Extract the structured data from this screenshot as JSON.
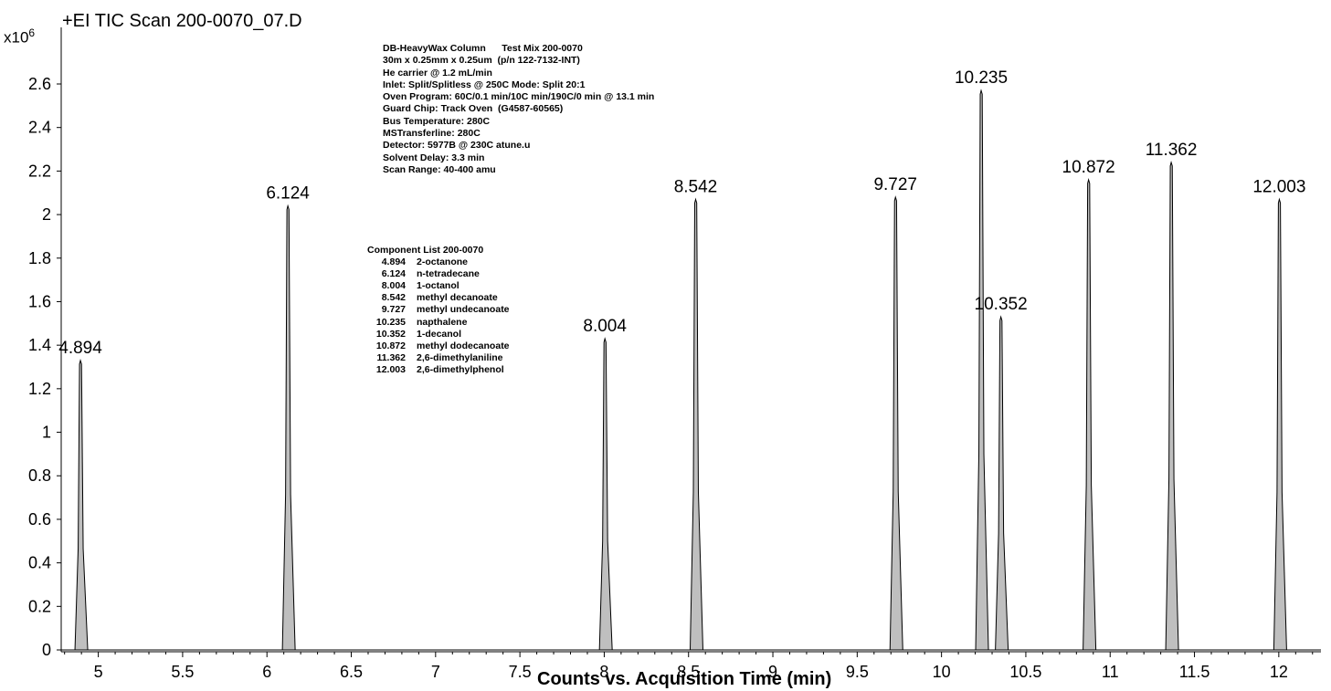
{
  "chart_data": {
    "type": "line",
    "title": "+EI TIC Scan 200-0070_07.D",
    "ylabel_multiplier_base": "x10",
    "ylabel_multiplier_exp": "6",
    "xlabel": "Counts vs. Acquisition Time (min)",
    "xlim": [
      4.78,
      12.25
    ],
    "ylim": [
      0,
      2.75
    ],
    "xticks": [
      5,
      5.5,
      6,
      6.5,
      7,
      7.5,
      8,
      8.5,
      9,
      9.5,
      10,
      10.5,
      11,
      11.5,
      12
    ],
    "xtick_labels": [
      "5",
      "5.5",
      "6",
      "6.5",
      "7",
      "7.5",
      "8",
      "8.5",
      "9",
      "9.5",
      "10",
      "10.5",
      "11",
      "11.5",
      "12"
    ],
    "yticks": [
      0,
      0.2,
      0.4,
      0.6,
      0.8,
      1,
      1.2,
      1.4,
      1.6,
      1.8,
      2,
      2.2,
      2.4,
      2.6
    ],
    "ytick_labels": [
      "0",
      "0.2",
      "0.4",
      "0.6",
      "0.8",
      "1",
      "1.2",
      "1.4",
      "1.6",
      "1.8",
      "2",
      "2.2",
      "2.4",
      "2.6"
    ],
    "peaks": [
      {
        "rt": 4.894,
        "label": "4.894",
        "height": 1.33
      },
      {
        "rt": 6.124,
        "label": "6.124",
        "height": 2.04
      },
      {
        "rt": 8.004,
        "label": "8.004",
        "height": 1.43
      },
      {
        "rt": 8.542,
        "label": "8.542",
        "height": 2.07
      },
      {
        "rt": 9.727,
        "label": "9.727",
        "height": 2.08
      },
      {
        "rt": 10.235,
        "label": "10.235",
        "height": 2.57
      },
      {
        "rt": 10.352,
        "label": "10.352",
        "height": 1.53
      },
      {
        "rt": 10.872,
        "label": "10.872",
        "height": 2.16
      },
      {
        "rt": 11.362,
        "label": "11.362",
        "height": 2.24
      },
      {
        "rt": 12.003,
        "label": "12.003",
        "height": 2.07
      }
    ],
    "peak_fill": "#bfbfbf",
    "trace_color": "#000000"
  },
  "method_info": [
    "DB-HeavyWax Column      Test Mix 200-0070",
    "30m x 0.25mm x 0.25um  (p/n 122-7132-INT)",
    "He carrier @ 1.2 mL/min",
    "Inlet: Split/Splitless @ 250C Mode: Split 20:1",
    "Oven Program: 60C/0.1 min/10C min/190C/0 min @ 13.1 min",
    "Guard Chip: Track Oven  (G4587-60565)",
    "Bus Temperature: 280C",
    "MSTransferline: 280C",
    "Detector: 5977B @ 230C atune.u",
    "Solvent Delay: 3.3 min",
    "Scan Range: 40-400 amu"
  ],
  "component_list": {
    "title": "Component List  200-0070",
    "items": [
      {
        "rt": "4.894",
        "name": "2-octanone"
      },
      {
        "rt": "6.124",
        "name": "n-tetradecane"
      },
      {
        "rt": "8.004",
        "name": "1-octanol"
      },
      {
        "rt": "8.542",
        "name": "methyl decanoate"
      },
      {
        "rt": "9.727",
        "name": "methyl undecanoate"
      },
      {
        "rt": "10.235",
        "name": "napthalene"
      },
      {
        "rt": "10.352",
        "name": "1-decanol"
      },
      {
        "rt": "10.872",
        "name": "methyl dodecanoate"
      },
      {
        "rt": "11.362",
        "name": "2,6-dimethylaniline"
      },
      {
        "rt": "12.003",
        "name": "2,6-dimethylphenol"
      }
    ]
  }
}
